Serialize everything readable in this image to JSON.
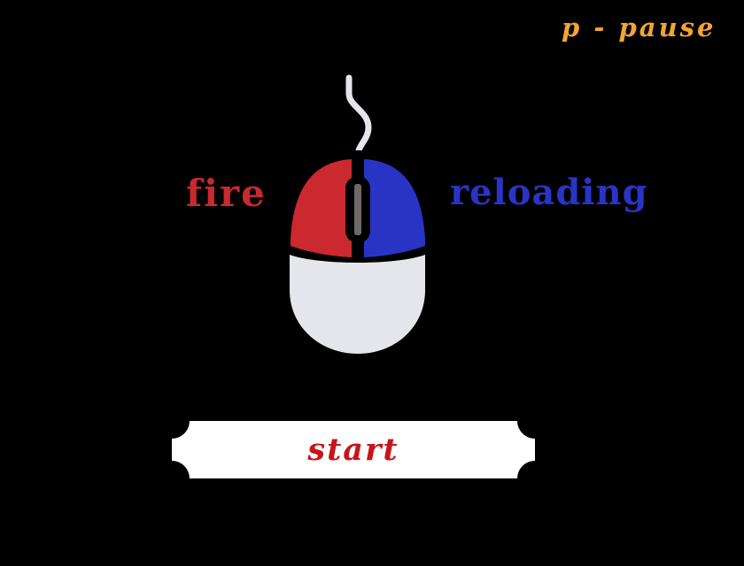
{
  "hud": {
    "pause_hint": "p - pause"
  },
  "controls": {
    "left_button_label": "fire",
    "right_button_label": "reloading"
  },
  "menu": {
    "start_label": "start"
  },
  "icons": {
    "mouse": "mouse-icon",
    "ticket": "ticket-shape"
  },
  "colors": {
    "background": "#000000",
    "pause_text": "#f2a534",
    "fire": "#c9292f",
    "reload": "#2a34c4",
    "mouse_body": "#e4e6ec",
    "cable": "#e4e6ec",
    "start_text": "#c8141b",
    "button_bg": "#ffffff"
  }
}
